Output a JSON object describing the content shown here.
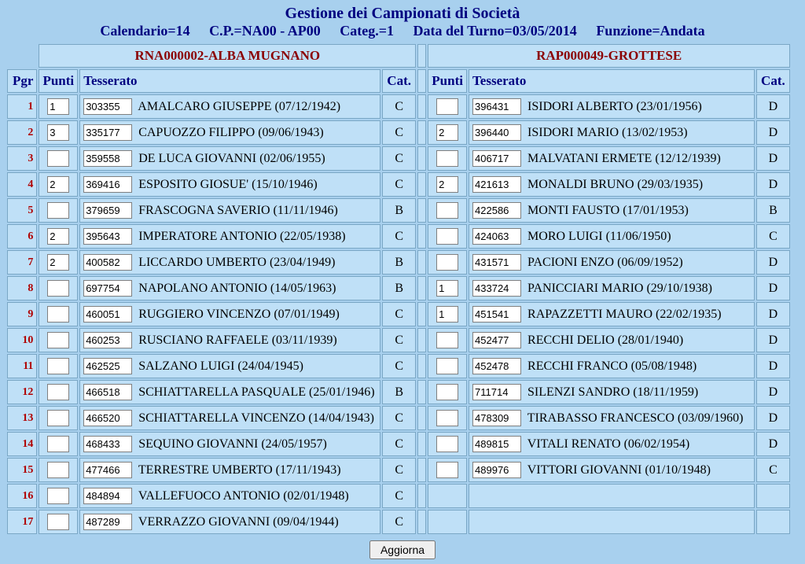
{
  "header": {
    "title": "Gestione dei Campionati di Società",
    "calendario": "Calendario=14",
    "cp": "C.P.=NA00 - AP00",
    "categ": "Categ.=1",
    "dataturno": "Data del Turno=03/05/2014",
    "funzione": "Funzione=Andata"
  },
  "columns": {
    "pgr": "Pgr",
    "punti": "Punti",
    "tesserato": "Tesserato",
    "cat": "Cat."
  },
  "team_left": "RNA000002-ALBA MUGNANO",
  "team_right": "RAP000049-GROTTESE",
  "rows_left": [
    {
      "pgr": "1",
      "punti": "1",
      "id": "303355",
      "name": "AMALCARO GIUSEPPE (07/12/1942)",
      "cat": "C"
    },
    {
      "pgr": "2",
      "punti": "3",
      "id": "335177",
      "name": "CAPUOZZO FILIPPO (09/06/1943)",
      "cat": "C"
    },
    {
      "pgr": "3",
      "punti": "",
      "id": "359558",
      "name": "DE LUCA GIOVANNI (02/06/1955)",
      "cat": "C"
    },
    {
      "pgr": "4",
      "punti": "2",
      "id": "369416",
      "name": "ESPOSITO GIOSUE' (15/10/1946)",
      "cat": "C"
    },
    {
      "pgr": "5",
      "punti": "",
      "id": "379659",
      "name": "FRASCOGNA SAVERIO (11/11/1946)",
      "cat": "B"
    },
    {
      "pgr": "6",
      "punti": "2",
      "id": "395643",
      "name": "IMPERATORE ANTONIO (22/05/1938)",
      "cat": "C"
    },
    {
      "pgr": "7",
      "punti": "2",
      "id": "400582",
      "name": "LICCARDO UMBERTO (23/04/1949)",
      "cat": "B"
    },
    {
      "pgr": "8",
      "punti": "",
      "id": "697754",
      "name": "NAPOLANO ANTONIO (14/05/1963)",
      "cat": "B"
    },
    {
      "pgr": "9",
      "punti": "",
      "id": "460051",
      "name": "RUGGIERO VINCENZO (07/01/1949)",
      "cat": "C"
    },
    {
      "pgr": "10",
      "punti": "",
      "id": "460253",
      "name": "RUSCIANO RAFFAELE (03/11/1939)",
      "cat": "C"
    },
    {
      "pgr": "11",
      "punti": "",
      "id": "462525",
      "name": "SALZANO LUIGI (24/04/1945)",
      "cat": "C"
    },
    {
      "pgr": "12",
      "punti": "",
      "id": "466518",
      "name": "SCHIATTARELLA PASQUALE (25/01/1946)",
      "cat": "B"
    },
    {
      "pgr": "13",
      "punti": "",
      "id": "466520",
      "name": "SCHIATTARELLA VINCENZO (14/04/1943)",
      "cat": "C"
    },
    {
      "pgr": "14",
      "punti": "",
      "id": "468433",
      "name": "SEQUINO GIOVANNI (24/05/1957)",
      "cat": "C"
    },
    {
      "pgr": "15",
      "punti": "",
      "id": "477466",
      "name": "TERRESTRE UMBERTO (17/11/1943)",
      "cat": "C"
    },
    {
      "pgr": "16",
      "punti": "",
      "id": "484894",
      "name": "VALLEFUOCO ANTONIO (02/01/1948)",
      "cat": "C"
    },
    {
      "pgr": "17",
      "punti": "",
      "id": "487289",
      "name": "VERRAZZO GIOVANNI (09/04/1944)",
      "cat": "C"
    }
  ],
  "rows_right": [
    {
      "punti": "",
      "id": "396431",
      "name": "ISIDORI ALBERTO (23/01/1956)",
      "cat": "D"
    },
    {
      "punti": "2",
      "id": "396440",
      "name": "ISIDORI MARIO (13/02/1953)",
      "cat": "D"
    },
    {
      "punti": "",
      "id": "406717",
      "name": "MALVATANI ERMETE (12/12/1939)",
      "cat": "D"
    },
    {
      "punti": "2",
      "id": "421613",
      "name": "MONALDI BRUNO (29/03/1935)",
      "cat": "D"
    },
    {
      "punti": "",
      "id": "422586",
      "name": "MONTI FAUSTO (17/01/1953)",
      "cat": "B"
    },
    {
      "punti": "",
      "id": "424063",
      "name": "MORO LUIGI (11/06/1950)",
      "cat": "C"
    },
    {
      "punti": "",
      "id": "431571",
      "name": "PACIONI ENZO (06/09/1952)",
      "cat": "D"
    },
    {
      "punti": "1",
      "id": "433724",
      "name": "PANICCIARI MARIO (29/10/1938)",
      "cat": "D"
    },
    {
      "punti": "1",
      "id": "451541",
      "name": "RAPAZZETTI MAURO (22/02/1935)",
      "cat": "D"
    },
    {
      "punti": "",
      "id": "452477",
      "name": "RECCHI DELIO (28/01/1940)",
      "cat": "D"
    },
    {
      "punti": "",
      "id": "452478",
      "name": "RECCHI FRANCO (05/08/1948)",
      "cat": "D"
    },
    {
      "punti": "",
      "id": "711714",
      "name": "SILENZI SANDRO (18/11/1959)",
      "cat": "D"
    },
    {
      "punti": "",
      "id": "478309",
      "name": "TIRABASSO FRANCESCO (03/09/1960)",
      "cat": "D"
    },
    {
      "punti": "",
      "id": "489815",
      "name": "VITALI RENATO (06/02/1954)",
      "cat": "D"
    },
    {
      "punti": "",
      "id": "489976",
      "name": "VITTORI GIOVANNI (01/10/1948)",
      "cat": "C"
    }
  ],
  "footer": {
    "aggiorna": "Aggiorna"
  },
  "styling": {
    "page_bg": "#a8d0ee",
    "cell_bg": "#bfe0f7",
    "cell_border": "#7aa7c5",
    "header_text": "#000080",
    "pgr_text": "#b00000",
    "team_text": "#8b0000",
    "input_bg": "#ffffff",
    "input_border": "#808080",
    "font_body": "Arial",
    "font_serif": "Times New Roman",
    "title_main_fontsize": 20,
    "title_sub_fontsize": 18,
    "colhead_fontsize": 17,
    "row_fontsize": 16,
    "input_fontsize": 13
  }
}
